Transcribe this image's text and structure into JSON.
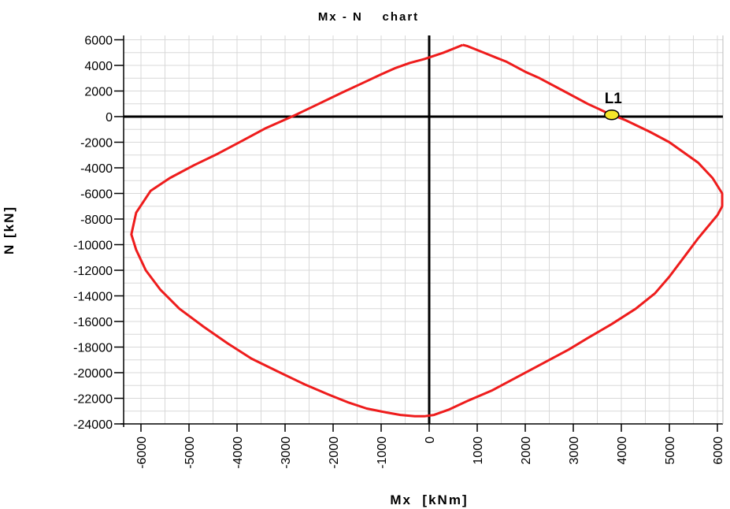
{
  "chart_data": {
    "type": "line",
    "title": "Mx - N    chart",
    "xlabel": "Mx  [kNm]",
    "ylabel": "N [kN]",
    "xlim": [
      -6500,
      6200
    ],
    "ylim": [
      -24500,
      6300
    ],
    "xticks": [
      -6000,
      -5000,
      -4000,
      -3000,
      -2000,
      -1000,
      0,
      1000,
      2000,
      3000,
      4000,
      5000,
      6000
    ],
    "yticks": [
      6000,
      4000,
      2000,
      0,
      -2000,
      -4000,
      -6000,
      -8000,
      -10000,
      -12000,
      -14000,
      -16000,
      -18000,
      -20000,
      -22000,
      -24000
    ],
    "grid": true,
    "colors": {
      "curve": "#ee1c1c",
      "axes": "#000000",
      "grid": "#d8d8d8",
      "point_fill": "#f5e62a"
    },
    "series": [
      {
        "x": [
          700,
          800,
          1000,
          1200,
          1400,
          1600,
          2000,
          2300,
          2800,
          3300,
          3700,
          4100,
          4600,
          5000,
          5300,
          5600,
          5900,
          6100,
          6100,
          6000,
          5600,
          5300,
          5000,
          4700,
          4300,
          3800,
          3300,
          2900,
          2500,
          2100,
          1700,
          1300,
          800,
          400,
          100,
          -100,
          -300,
          -600,
          -900,
          -1300,
          -1700,
          -2100,
          -2600,
          -3100,
          -3700,
          -4200,
          -4700,
          -5200,
          -5600,
          -5900,
          -6100,
          -6200,
          -6100,
          -5800,
          -5400,
          -4900,
          -4400,
          -3900,
          -3400,
          -2800,
          -2300,
          -1800,
          -1400,
          -1000,
          -700,
          -400,
          -100,
          300,
          700
        ],
        "y": [
          5600,
          5500,
          5200,
          4900,
          4600,
          4300,
          3500,
          3000,
          2000,
          1000,
          300,
          -300,
          -1200,
          -2000,
          -2800,
          -3600,
          -4800,
          -6000,
          -7000,
          -7700,
          -9500,
          -11000,
          -12500,
          -13800,
          -15000,
          -16200,
          -17300,
          -18200,
          -19000,
          -19800,
          -20600,
          -21400,
          -22200,
          -22900,
          -23300,
          -23400,
          -23400,
          -23300,
          -23100,
          -22800,
          -22300,
          -21700,
          -20900,
          -20000,
          -18900,
          -17700,
          -16400,
          -15000,
          -13500,
          -12000,
          -10400,
          -9200,
          -7500,
          -5800,
          -4800,
          -3800,
          -2900,
          -1900,
          -900,
          100,
          1000,
          1900,
          2600,
          3300,
          3800,
          4200,
          4500,
          5000,
          5600
        ]
      }
    ],
    "point": {
      "label": "L1",
      "x": 3800,
      "y": 200
    }
  }
}
